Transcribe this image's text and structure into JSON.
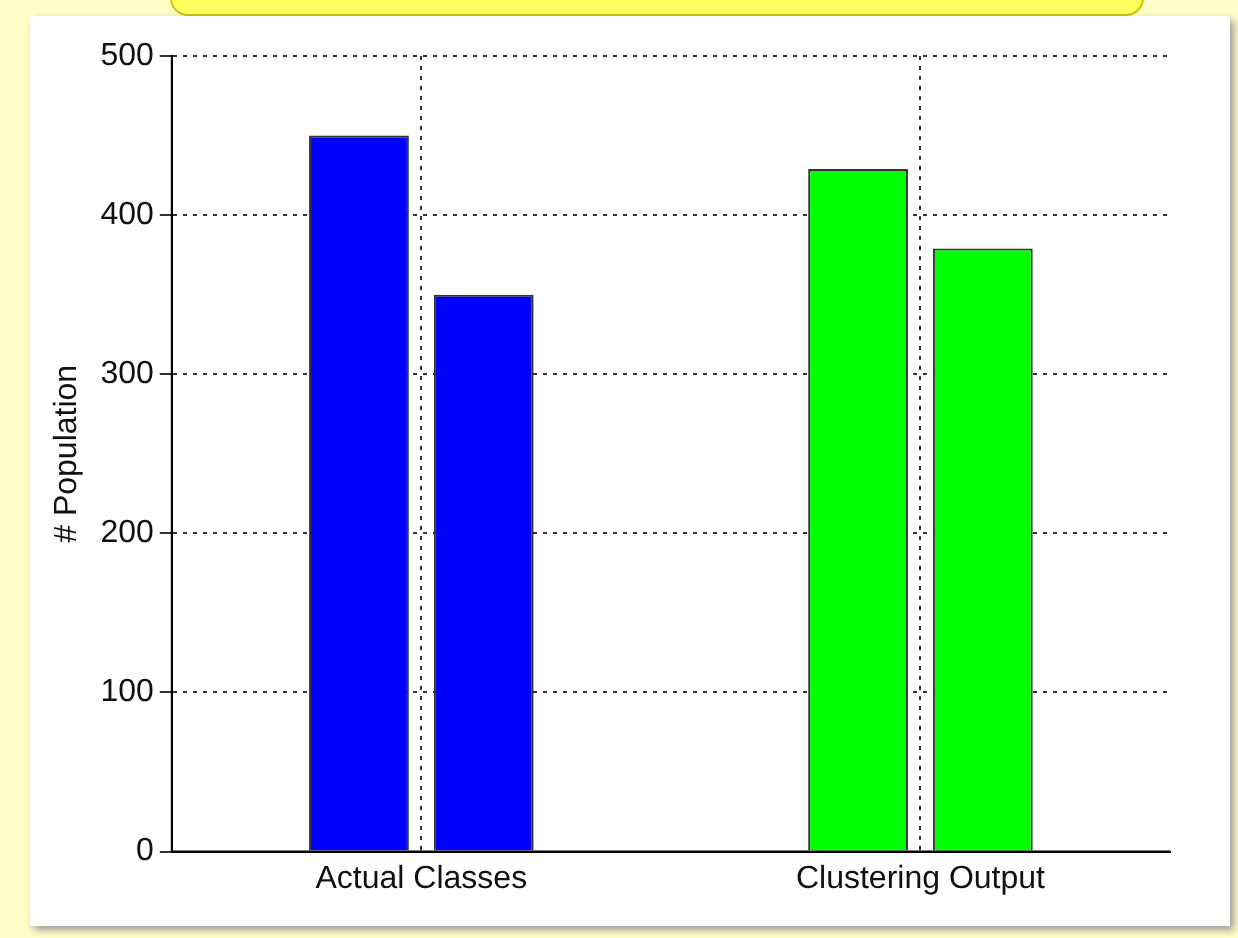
{
  "chart_data": {
    "type": "bar",
    "ylabel": "# Population",
    "categories": [
      "Actual Classes",
      "Clustering Output"
    ],
    "series": [
      {
        "colors": [
          "#0000ff",
          "#00ff00"
        ],
        "values": [
          450,
          429
        ]
      },
      {
        "colors": [
          "#0000ff",
          "#00ff00"
        ],
        "values": [
          350,
          379
        ]
      }
    ],
    "ylim": [
      0,
      500
    ],
    "yticks": [
      0,
      100,
      200,
      300,
      400,
      500
    ],
    "grid": true,
    "legend": false
  }
}
